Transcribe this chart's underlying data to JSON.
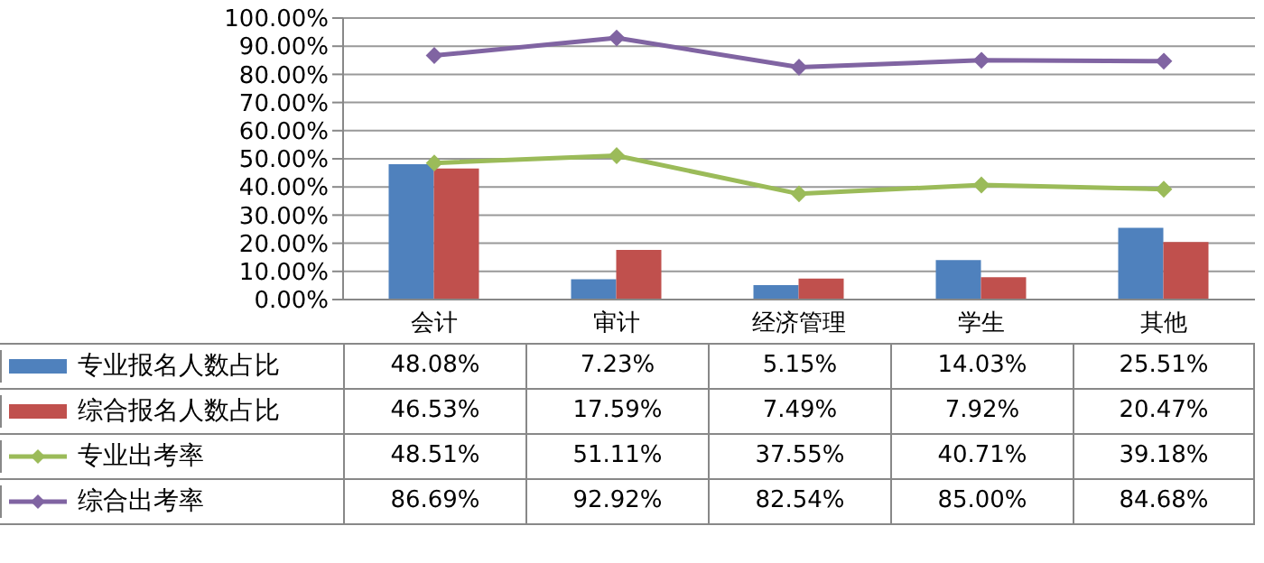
{
  "chart_data": {
    "type": "bar",
    "categories": [
      "会计",
      "审计",
      "经济管理",
      "学生",
      "其他"
    ],
    "series": [
      {
        "name": "专业报名人数占比",
        "color": "#4f81bd",
        "values": [
          48.08,
          7.23,
          5.15,
          14.03,
          25.51
        ],
        "value_labels": [
          "48.08%",
          "7.23%",
          "5.15%",
          "14.03%",
          "25.51%"
        ]
      },
      {
        "name": "综合报名人数占比",
        "color": "#c0504d",
        "values": [
          46.53,
          17.59,
          7.49,
          7.92,
          20.47
        ],
        "value_labels": [
          "46.53%",
          "17.59%",
          "7.49%",
          "7.92%",
          "20.47%"
        ]
      },
      {
        "name": "专业出考率",
        "type": "line",
        "color": "#9bbb59",
        "values": [
          48.51,
          51.11,
          37.55,
          40.71,
          39.18
        ],
        "value_labels": [
          "48.51%",
          "51.11%",
          "37.55%",
          "40.71%",
          "39.18%"
        ]
      },
      {
        "name": "综合出考率",
        "type": "line",
        "color": "#8064a2",
        "values": [
          86.69,
          92.92,
          82.54,
          85.0,
          84.68
        ],
        "value_labels": [
          "86.69%",
          "92.92%",
          "82.54%",
          "85.00%",
          "84.68%"
        ]
      }
    ],
    "ylim": [
      0,
      100
    ],
    "yticks": [
      {
        "value": 0,
        "label": "0.00%"
      },
      {
        "value": 10,
        "label": "10.00%"
      },
      {
        "value": 20,
        "label": "20.00%"
      },
      {
        "value": 30,
        "label": "30.00%"
      },
      {
        "value": 40,
        "label": "40.00%"
      },
      {
        "value": 50,
        "label": "50.00%"
      },
      {
        "value": 60,
        "label": "60.00%"
      },
      {
        "value": 70,
        "label": "70.00%"
      },
      {
        "value": 80,
        "label": "80.00%"
      },
      {
        "value": 90,
        "label": "90.00%"
      },
      {
        "value": 100,
        "label": "100.00%"
      }
    ],
    "grid": "y",
    "legend": "bottom",
    "marker": "diamond",
    "line_style": "solid"
  }
}
